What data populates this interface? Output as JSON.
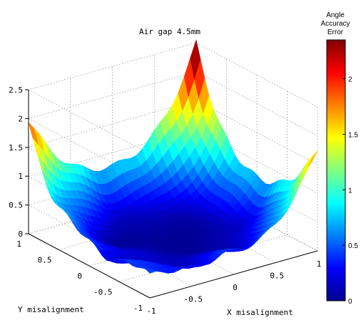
{
  "chart_data": {
    "type": "surface",
    "title": "Air gap 4.5mm",
    "xlabel": "X misalignment",
    "ylabel": "Y misalignment",
    "zlabel": "",
    "xlim": [
      -1,
      1
    ],
    "ylim": [
      -1,
      1
    ],
    "zlim": [
      0,
      2.5
    ],
    "x_ticks": [
      "-1",
      "-0.5",
      "0",
      "0.5",
      "1"
    ],
    "y_ticks": [
      "-1",
      "-0.5",
      "0",
      "0.5",
      "1"
    ],
    "z_ticks": [
      "0",
      "0.5",
      "1",
      "1.5",
      "2",
      "2.5"
    ],
    "grid": true,
    "colormap": "jet",
    "corner_values": {
      "x-1_y-1": 0.35,
      "x1_y-1": 1.75,
      "x-1_y1": 1.95,
      "x1_y1": 2.5
    },
    "min_value": 0.05,
    "colorbar": {
      "title_lines": [
        "Angle",
        "Accuracy",
        "Error"
      ],
      "range": [
        0,
        2.35
      ],
      "ticks": [
        "0",
        "0.5",
        "1",
        "1.5",
        "2"
      ]
    }
  }
}
